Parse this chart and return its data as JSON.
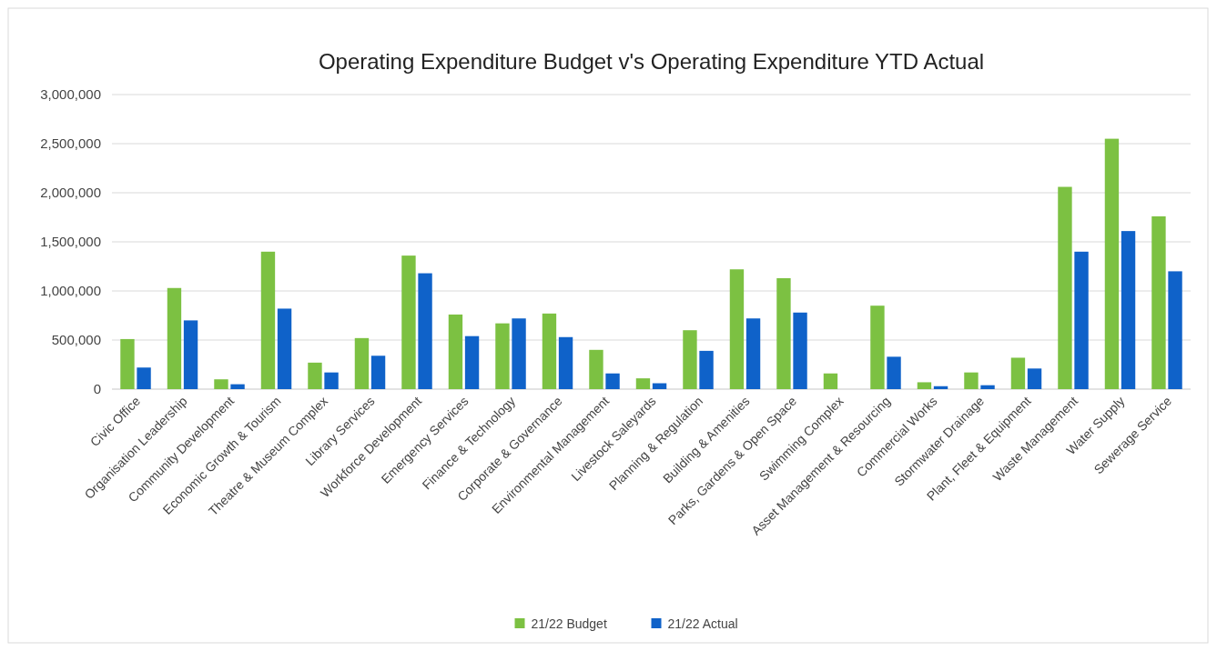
{
  "chart_data": {
    "type": "bar",
    "title": "Operating Expenditure Budget v's Operating Expenditure YTD Actual",
    "categories": [
      "Civic Office",
      "Organisation Leadership",
      "Community Development",
      "Economic Growth & Tourism",
      "Theatre & Museum Complex",
      "Library Services",
      "Workforce Development",
      "Emergency Services",
      "Finance & Technology",
      "Corporate & Governance",
      "Environmental Management",
      "Livestock Saleyards",
      "Planning & Regulation",
      "Building & Amenities",
      "Parks, Gardens & Open Space",
      "Swimming Complex",
      "Asset Management & Resourcing",
      "Commercial Works",
      "Stormwater Drainage",
      "Plant, Fleet & Equipment",
      "Waste Management",
      "Water Supply",
      "Sewerage Service"
    ],
    "series": [
      {
        "name": "21/22 Budget",
        "color": "#7cc142",
        "values": [
          510000,
          1030000,
          100000,
          1400000,
          270000,
          520000,
          1360000,
          760000,
          670000,
          770000,
          400000,
          110000,
          600000,
          1220000,
          1130000,
          160000,
          850000,
          70000,
          170000,
          320000,
          2060000,
          2550000,
          1760000
        ]
      },
      {
        "name": "21/22 Actual",
        "color": "#0f62c9",
        "values": [
          220000,
          700000,
          50000,
          820000,
          170000,
          340000,
          1180000,
          540000,
          720000,
          530000,
          160000,
          60000,
          390000,
          720000,
          780000,
          null,
          330000,
          30000,
          40000,
          210000,
          1400000,
          1610000,
          1200000
        ]
      }
    ],
    "ylim": [
      0,
      3000000
    ],
    "yticks": [
      {
        "value": 0,
        "label": "0"
      },
      {
        "value": 500000,
        "label": "500,000"
      },
      {
        "value": 1000000,
        "label": "1,000,000"
      },
      {
        "value": 1500000,
        "label": "1,500,000"
      },
      {
        "value": 2000000,
        "label": "2,000,000"
      },
      {
        "value": 2500000,
        "label": "2,500,000"
      },
      {
        "value": 3000000,
        "label": "3,000,000"
      }
    ],
    "grid": "y",
    "legend": "bottom"
  }
}
